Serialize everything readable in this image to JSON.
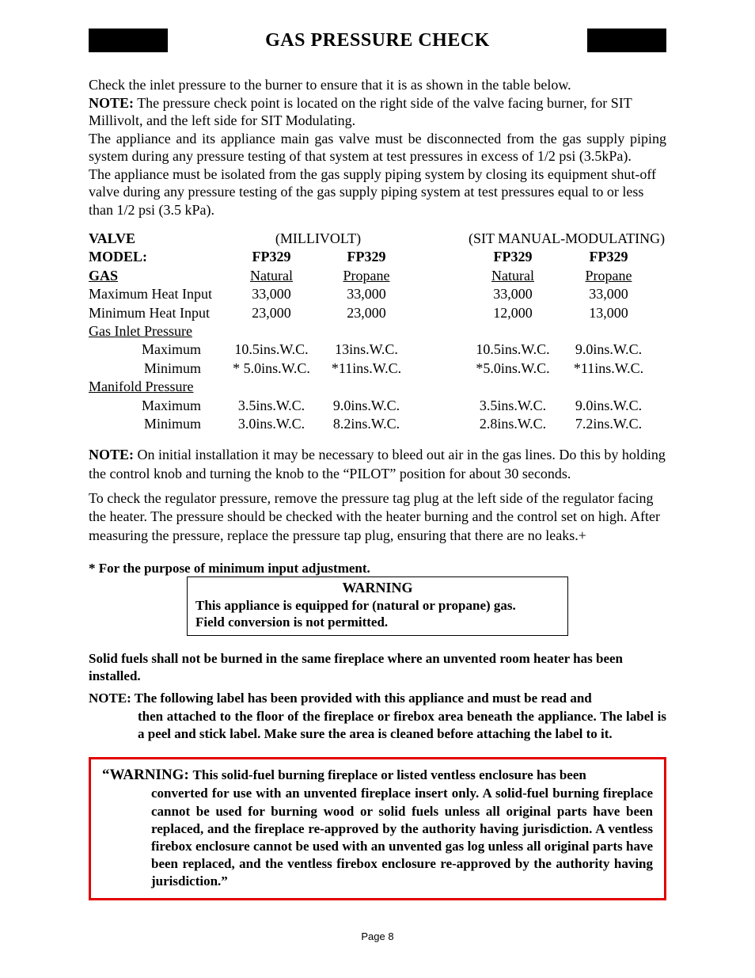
{
  "title": "GAS PRESSURE CHECK",
  "intro": {
    "p1": "Check the inlet pressure to the burner to ensure that it is as shown in the table below.",
    "p2_label": "NOTE:",
    "p2": "  The pressure check point is located on the right side of the valve facing burner, for SIT Millivolt, and the left side for SIT Modulating.",
    "p3": " The appliance and its appliance main gas valve must be disconnected from the gas supply piping system during any pressure testing of that system at test pressures in excess of 1/2 psi (3.5kPa).",
    "p4": "The appliance must be isolated from the gas supply piping system by closing its equipment shut-off valve during any pressure testing of the gas supply piping system at test pressures equal to or less than 1/2 psi (3.5 kPa)."
  },
  "table": {
    "valve_label": "VALVE",
    "millivolt": "(MILLIVOLT)",
    "sit": "(SIT MANUAL-MODULATING)",
    "model_label": "MODEL:",
    "m1": "FP329",
    "m2": "FP329",
    "m3": "FP329",
    "m4": "FP329",
    "gas_label": "GAS",
    "g1": "Natural",
    "g2": "Propane",
    "g3": "Natural",
    "g4": "Propane",
    "max_heat_label": "Maximum Heat Input",
    "mh1": "33,000",
    "mh2": "33,000",
    "mh3": "33,000",
    "mh4": "33,000",
    "min_heat_label": "Minimum  Heat Input",
    "nh1": "23,000",
    "nh2": "23,000",
    "nh3": "12,000",
    "nh4": "13,000",
    "inlet_label": "Gas Inlet Pressure",
    "max_label": "Maximum",
    "im1": "10.5ins.W.C.",
    "im2": "13ins.W.C.",
    "im3": "10.5ins.W.C.",
    "im4": "9.0ins.W.C.",
    "min_label": "Minimum",
    "in1": "* 5.0ins.W.C.",
    "in2": "*11ins.W.C.",
    "in3": "*5.0ins.W.C.",
    "in4": "*11ins.W.C.",
    "manifold_label": "Manifold Pressure",
    "mm1": "3.5ins.W.C.",
    "mm2": "9.0ins.W.C.",
    "mm3": "3.5ins.W.C.",
    "mm4": "9.0ins.W.C.",
    "mn1": "3.0ins.W.C.",
    "mn2": "8.2ins.W.C.",
    "mn3": "2.8ins.W.C.",
    "mn4": "7.2ins.W.C."
  },
  "note2": {
    "label": "NOTE:",
    "p1": "  On initial installation it may be necessary to bleed out air in the gas lines.  Do  this by holding the control knob and turning the knob to the “PILOT” position for about 30 seconds.",
    "p2": "To check the regulator pressure, remove the pressure tag plug at the left side of the regulator facing the heater.  The pressure should be checked with the heater burning and the control set on high.  After measuring the pressure, replace the pressure tap plug, ensuring that there  are no leaks.+"
  },
  "footnote": "*  For the purpose of minimum input adjustment.",
  "warning_box": {
    "title": "WARNING",
    "l1": "This appliance is equipped for (natural or propane) gas.",
    "l2": "Field conversion is not permitted."
  },
  "solid_fuels": "Solid fuels shall not be burned in the same fireplace where an unvented room heater has been installed.",
  "note3": {
    "lead": "NOTE: ",
    "body": "The following label has been provided with this appliance and must be read and then attached to the floor of the fireplace or firebox area beneath the appliance. The label is a peel and stick label. Make sure the area is cleaned before attaching the label to it."
  },
  "red_warning": {
    "lead": "“WARNING: ",
    "body": "This solid-fuel burning fireplace or listed ventless enclosure has been converted for use with an unvented fireplace insert only. A solid-fuel burning fireplace cannot be used for burning wood or solid fuels unless all original parts have been replaced, and the fireplace re-approved by the authority having jurisdiction. A ventless firebox enclosure cannot be used with an unvented gas log unless all original parts have been replaced, and the ventless firebox enclosure re-approved by the authority having jurisdiction.”"
  },
  "page_number": "Page 8"
}
